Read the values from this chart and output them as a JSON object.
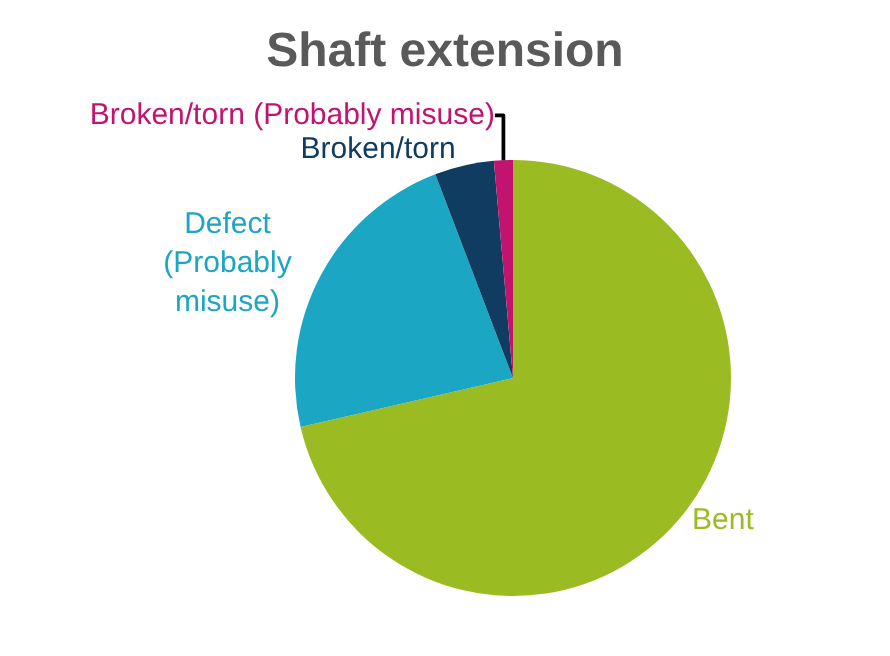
{
  "chart_data": {
    "type": "pie",
    "title": "Shaft extension",
    "categories": [
      "Bent",
      "Defect\n(Probably\nmisuse)",
      "Broken/torn",
      "Broken/torn (Probably misuse)"
    ],
    "values": [
      71.4,
      22.8,
      4.4,
      1.4
    ],
    "colors": [
      "#9bbb22",
      "#1ba6c3",
      "#0f3c60",
      "#c2146f"
    ],
    "legend": false
  }
}
